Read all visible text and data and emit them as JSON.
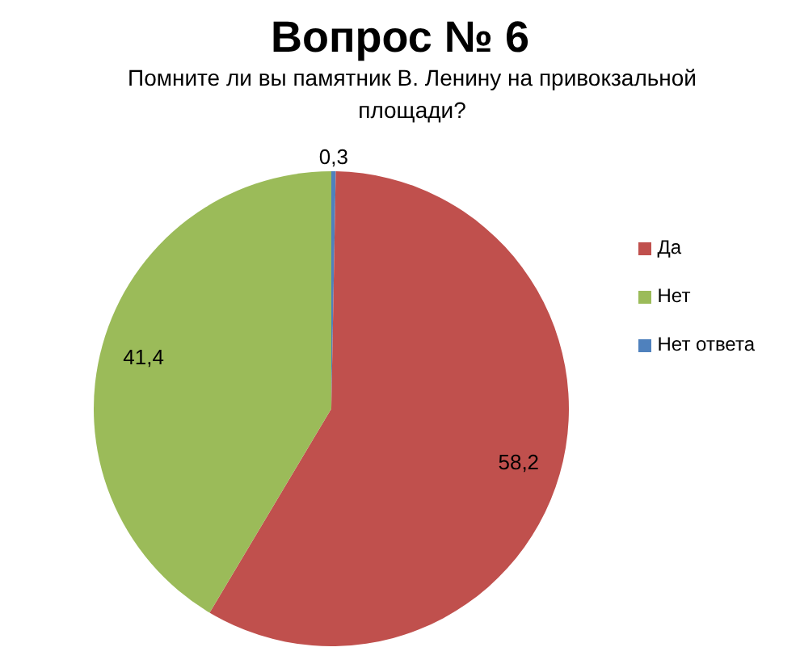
{
  "chart_data": {
    "type": "pie",
    "title": "Вопрос № 6",
    "subtitle": "Помните ли вы памятник В. Ленину на привокзальной площади?",
    "categories": [
      "Нет ответа",
      "Да",
      "Нет"
    ],
    "values": [
      0.3,
      58.2,
      41.4
    ],
    "colors": [
      "#4f81bd",
      "#c0504d",
      "#9bbb59"
    ],
    "value_labels": [
      "0,3",
      "58,2",
      "41,4"
    ],
    "legend": "right"
  }
}
